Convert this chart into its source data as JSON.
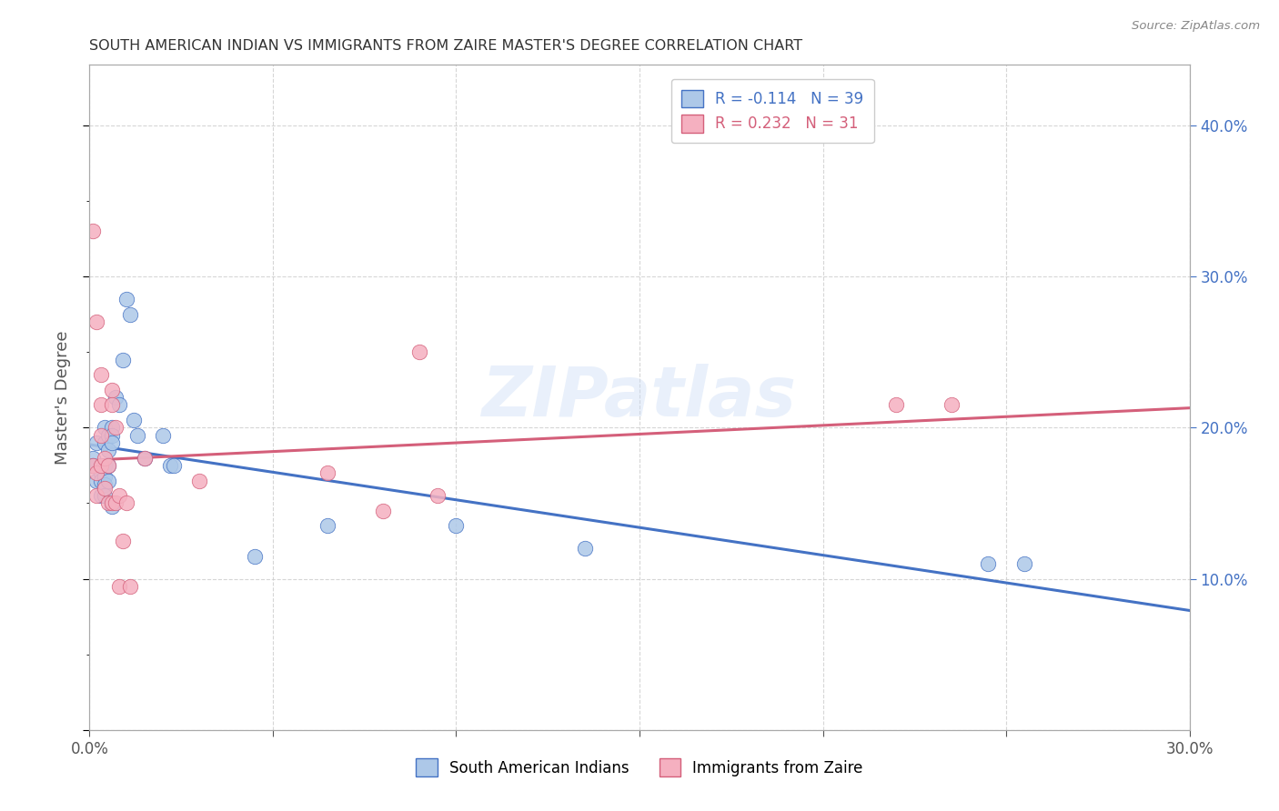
{
  "title": "SOUTH AMERICAN INDIAN VS IMMIGRANTS FROM ZAIRE MASTER'S DEGREE CORRELATION CHART",
  "source": "Source: ZipAtlas.com",
  "ylabel": "Master's Degree",
  "right_yticks": [
    10.0,
    20.0,
    30.0,
    40.0
  ],
  "xlim": [
    0.0,
    0.3
  ],
  "ylim": [
    0.0,
    0.44
  ],
  "blue_R": -0.114,
  "blue_N": 39,
  "pink_R": 0.232,
  "pink_N": 31,
  "blue_color": "#adc8e8",
  "pink_color": "#f5b0c0",
  "blue_line_color": "#4472c4",
  "pink_line_color": "#d45f7a",
  "legend_label_blue": "South American Indians",
  "legend_label_pink": "Immigrants from Zaire",
  "watermark": "ZIPatlas",
  "blue_x": [
    0.001,
    0.001,
    0.002,
    0.002,
    0.003,
    0.003,
    0.003,
    0.003,
    0.004,
    0.004,
    0.004,
    0.004,
    0.004,
    0.004,
    0.005,
    0.005,
    0.005,
    0.005,
    0.006,
    0.006,
    0.006,
    0.006,
    0.007,
    0.008,
    0.009,
    0.01,
    0.011,
    0.012,
    0.013,
    0.015,
    0.02,
    0.022,
    0.023,
    0.045,
    0.065,
    0.1,
    0.135,
    0.245,
    0.255
  ],
  "blue_y": [
    0.18,
    0.175,
    0.19,
    0.165,
    0.175,
    0.17,
    0.165,
    0.155,
    0.2,
    0.19,
    0.175,
    0.168,
    0.162,
    0.155,
    0.195,
    0.185,
    0.175,
    0.165,
    0.2,
    0.195,
    0.19,
    0.148,
    0.22,
    0.215,
    0.245,
    0.285,
    0.275,
    0.205,
    0.195,
    0.18,
    0.195,
    0.175,
    0.175,
    0.115,
    0.135,
    0.135,
    0.12,
    0.11,
    0.11
  ],
  "pink_x": [
    0.001,
    0.001,
    0.002,
    0.002,
    0.002,
    0.003,
    0.003,
    0.003,
    0.003,
    0.004,
    0.004,
    0.005,
    0.005,
    0.006,
    0.006,
    0.006,
    0.007,
    0.007,
    0.008,
    0.008,
    0.009,
    0.01,
    0.011,
    0.015,
    0.03,
    0.065,
    0.08,
    0.09,
    0.095,
    0.22,
    0.235
  ],
  "pink_y": [
    0.33,
    0.175,
    0.27,
    0.155,
    0.17,
    0.235,
    0.215,
    0.195,
    0.175,
    0.18,
    0.16,
    0.175,
    0.15,
    0.225,
    0.215,
    0.15,
    0.2,
    0.15,
    0.155,
    0.095,
    0.125,
    0.15,
    0.095,
    0.18,
    0.165,
    0.17,
    0.145,
    0.25,
    0.155,
    0.215,
    0.215
  ]
}
